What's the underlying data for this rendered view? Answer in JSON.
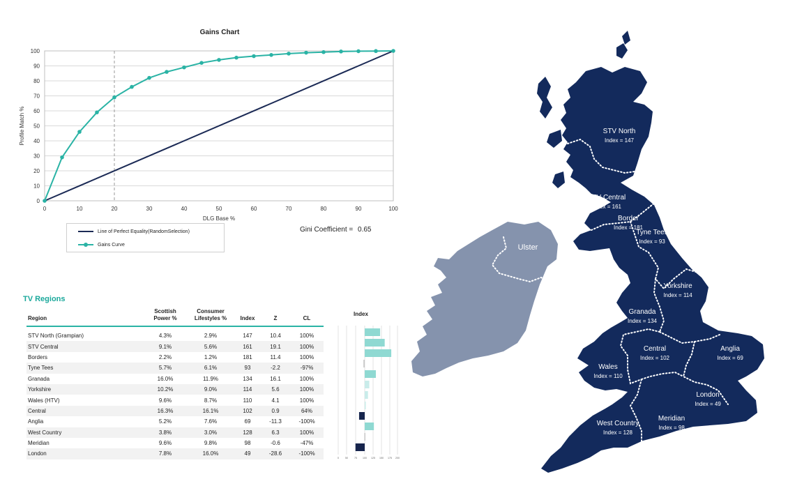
{
  "gains": {
    "title": "Gains Chart",
    "xlabel": "DLG Base %",
    "ylabel": "Profile Match %",
    "legend_equality": "Line of Perfect Equality(RandomSelection)",
    "legend_gains": "Gains Curve",
    "gini_label": "Gini Coefficient =",
    "gini_value": "0.65",
    "line_color": "#1b2a55",
    "curve_color": "#2ab3a5"
  },
  "chart_data": [
    {
      "type": "line",
      "title": "Gains Chart",
      "xlabel": "DLG Base %",
      "ylabel": "Profile Match %",
      "xlim": [
        0,
        100
      ],
      "ylim": [
        0,
        100
      ],
      "xticks": [
        0,
        10,
        20,
        30,
        40,
        50,
        60,
        70,
        80,
        90,
        100
      ],
      "yticks": [
        0,
        10,
        20,
        30,
        40,
        50,
        60,
        70,
        80,
        90,
        100
      ],
      "grid": "horizontal",
      "reference_line_x": 20,
      "legend_position": "bottom",
      "series": [
        {
          "name": "Line of Perfect Equality(RandomSelection)",
          "x": [
            0,
            100
          ],
          "y": [
            0,
            100
          ]
        },
        {
          "name": "Gains Curve",
          "x": [
            0,
            5,
            10,
            15,
            20,
            25,
            30,
            35,
            40,
            45,
            50,
            55,
            60,
            65,
            70,
            75,
            80,
            85,
            90,
            95,
            100
          ],
          "y": [
            0,
            29,
            46,
            59,
            69,
            76,
            82,
            86,
            89,
            92,
            94,
            95.5,
            96.5,
            97.3,
            98.2,
            98.8,
            99.2,
            99.6,
            99.8,
            99.9,
            100
          ]
        }
      ]
    },
    {
      "type": "bar",
      "orientation": "horizontal",
      "title": "Index",
      "baseline": 100,
      "xlim": [
        0,
        200
      ],
      "xticks": [
        "0",
        "50",
        "75",
        "100",
        "125",
        "150",
        "175",
        "200"
      ],
      "categories": [
        "STV North (Grampian)",
        "STV Central",
        "Borders",
        "Tyne Tees",
        "Granada",
        "Yorkshire",
        "Wales (HTV)",
        "Central",
        "Anglia",
        "West Country",
        "Meridian",
        "London"
      ],
      "values": [
        147,
        161,
        181,
        93,
        134,
        114,
        110,
        102,
        69,
        128,
        98,
        49
      ],
      "z": [
        10.4,
        19.1,
        11.4,
        -2.2,
        16.1,
        5.6,
        4.1,
        0.9,
        -11.3,
        6.3,
        -0.6,
        -28.6
      ]
    }
  ],
  "table": {
    "title": "TV Regions",
    "headers": {
      "region": "Region",
      "sp1": "Scottish",
      "sp2": "Power %",
      "cl1": "Consumer",
      "cl2": "Lifestyles %",
      "index": "Index",
      "z": "Z",
      "conf": "CL"
    },
    "rows": [
      {
        "region": "STV North (Grampian)",
        "sp": "4.3%",
        "cl": "2.9%",
        "index": "147",
        "z": "10.4",
        "conf": "100%"
      },
      {
        "region": "STV Central",
        "sp": "9.1%",
        "cl": "5.6%",
        "index": "161",
        "z": "19.1",
        "conf": "100%"
      },
      {
        "region": "Borders",
        "sp": "2.2%",
        "cl": "1.2%",
        "index": "181",
        "z": "11.4",
        "conf": "100%"
      },
      {
        "region": "Tyne Tees",
        "sp": "5.7%",
        "cl": "6.1%",
        "index": "93",
        "z": "-2.2",
        "conf": "-97%"
      },
      {
        "region": "Granada",
        "sp": "16.0%",
        "cl": "11.9%",
        "index": "134",
        "z": "16.1",
        "conf": "100%"
      },
      {
        "region": "Yorkshire",
        "sp": "10.2%",
        "cl": "9.0%",
        "index": "114",
        "z": "5.6",
        "conf": "100%"
      },
      {
        "region": "Wales (HTV)",
        "sp": "9.6%",
        "cl": "8.7%",
        "index": "110",
        "z": "4.1",
        "conf": "100%"
      },
      {
        "region": "Central",
        "sp": "16.3%",
        "cl": "16.1%",
        "index": "102",
        "z": "0.9",
        "conf": "64%"
      },
      {
        "region": "Anglia",
        "sp": "5.2%",
        "cl": "7.6%",
        "index": "69",
        "z": "-11.3",
        "conf": "-100%"
      },
      {
        "region": "West Country",
        "sp": "3.8%",
        "cl": "3.0%",
        "index": "128",
        "z": "6.3",
        "conf": "100%"
      },
      {
        "region": "Meridian",
        "sp": "9.6%",
        "cl": "9.8%",
        "index": "98",
        "z": "-0.6",
        "conf": "-47%"
      },
      {
        "region": "London",
        "sp": "7.8%",
        "cl": "16.0%",
        "index": "49",
        "z": "-28.6",
        "conf": "-100%"
      }
    ]
  },
  "index_chart": {
    "title": "Index",
    "pos_strong": "#8fd9d2",
    "pos_weak": "#c9ecea",
    "neg_strong": "#17254d",
    "neg_weak": "#c8c8c8"
  },
  "map": {
    "land_color": "#132a5c",
    "ireland_color": "#8593ad",
    "regions": [
      {
        "name": "STV North",
        "index": "Index = 147"
      },
      {
        "name": "STV Central",
        "index": "Index = 161"
      },
      {
        "name": "Border",
        "index": "Index = 181"
      },
      {
        "name": "Tyne Tees",
        "index": "Index = 93"
      },
      {
        "name": "Yorkshire",
        "index": "Index = 114"
      },
      {
        "name": "Granada",
        "index": "Index = 134"
      },
      {
        "name": "Central",
        "index": "Index = 102"
      },
      {
        "name": "Anglia",
        "index": "Index = 69"
      },
      {
        "name": "Wales",
        "index": "Index = 110"
      },
      {
        "name": "London",
        "index": "Index = 49"
      },
      {
        "name": "Meridian",
        "index": "Index = 98"
      },
      {
        "name": "West Country",
        "index": "Index = 128"
      }
    ],
    "ireland_label": "Ulster"
  }
}
